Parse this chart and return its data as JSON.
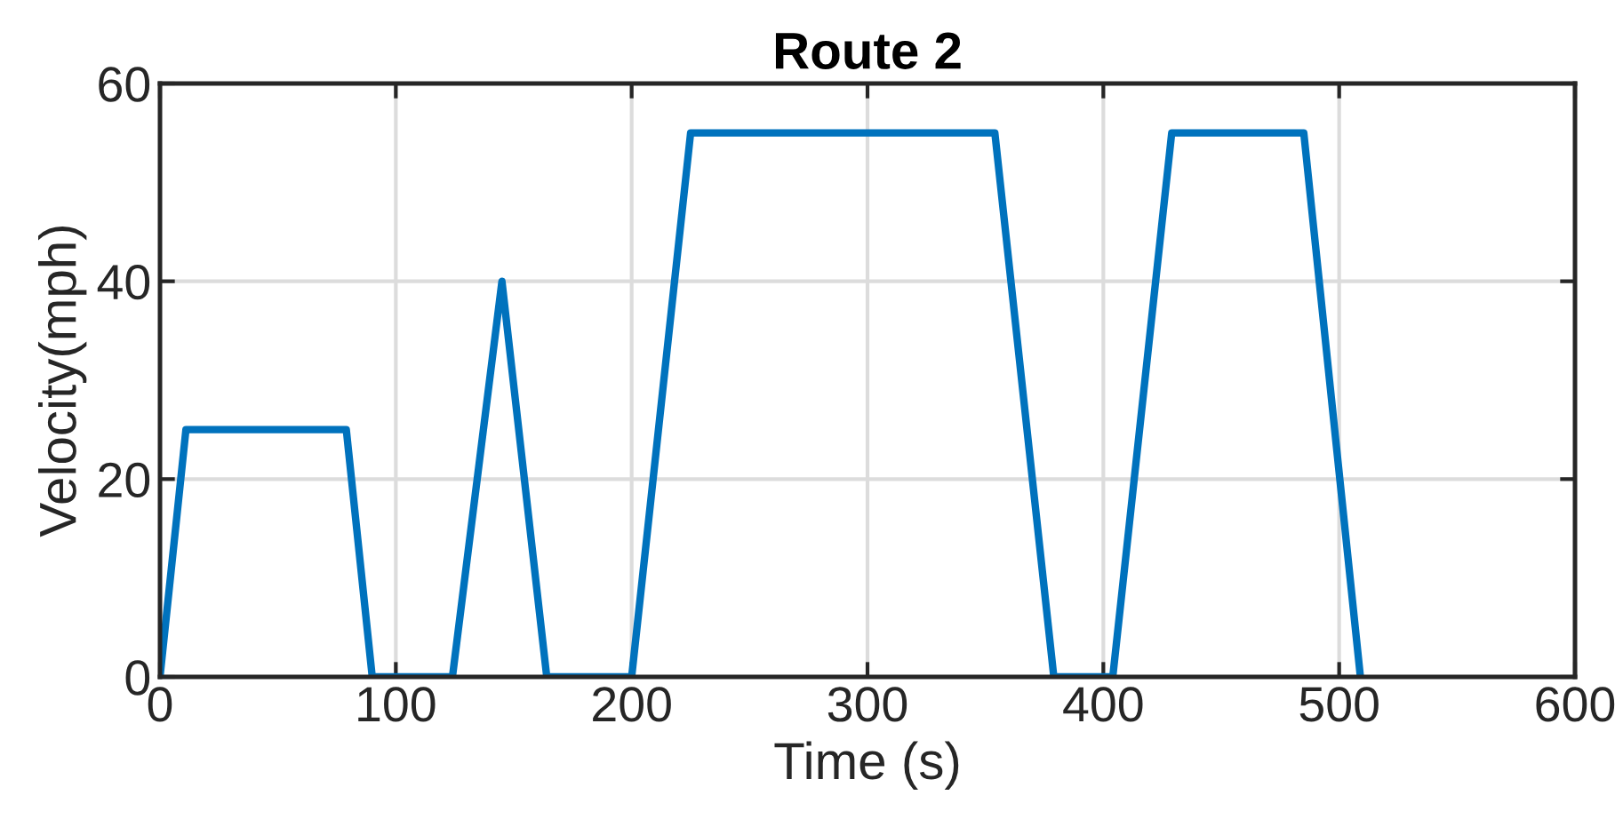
{
  "chart_data": {
    "type": "line",
    "title": "Route 2",
    "xlabel": "Time (s)",
    "ylabel": "Velocity(mph)",
    "x": [
      0,
      11,
      79,
      90,
      124,
      145,
      164,
      200,
      225,
      354,
      379,
      404,
      429,
      485,
      509
    ],
    "series": [
      {
        "color": "#0072bd",
        "values": [
          0,
          25,
          25,
          0,
          0,
          40,
          0,
          0,
          55,
          55,
          0,
          0,
          55,
          55,
          0
        ]
      }
    ],
    "xlim": [
      0,
      600
    ],
    "xticks": [
      0,
      100,
      200,
      300,
      400,
      500,
      600
    ],
    "ylim": [
      0,
      60
    ],
    "yticks": [
      0,
      20,
      40,
      60
    ],
    "grid": true,
    "marker": "none",
    "line_style": "solid"
  }
}
